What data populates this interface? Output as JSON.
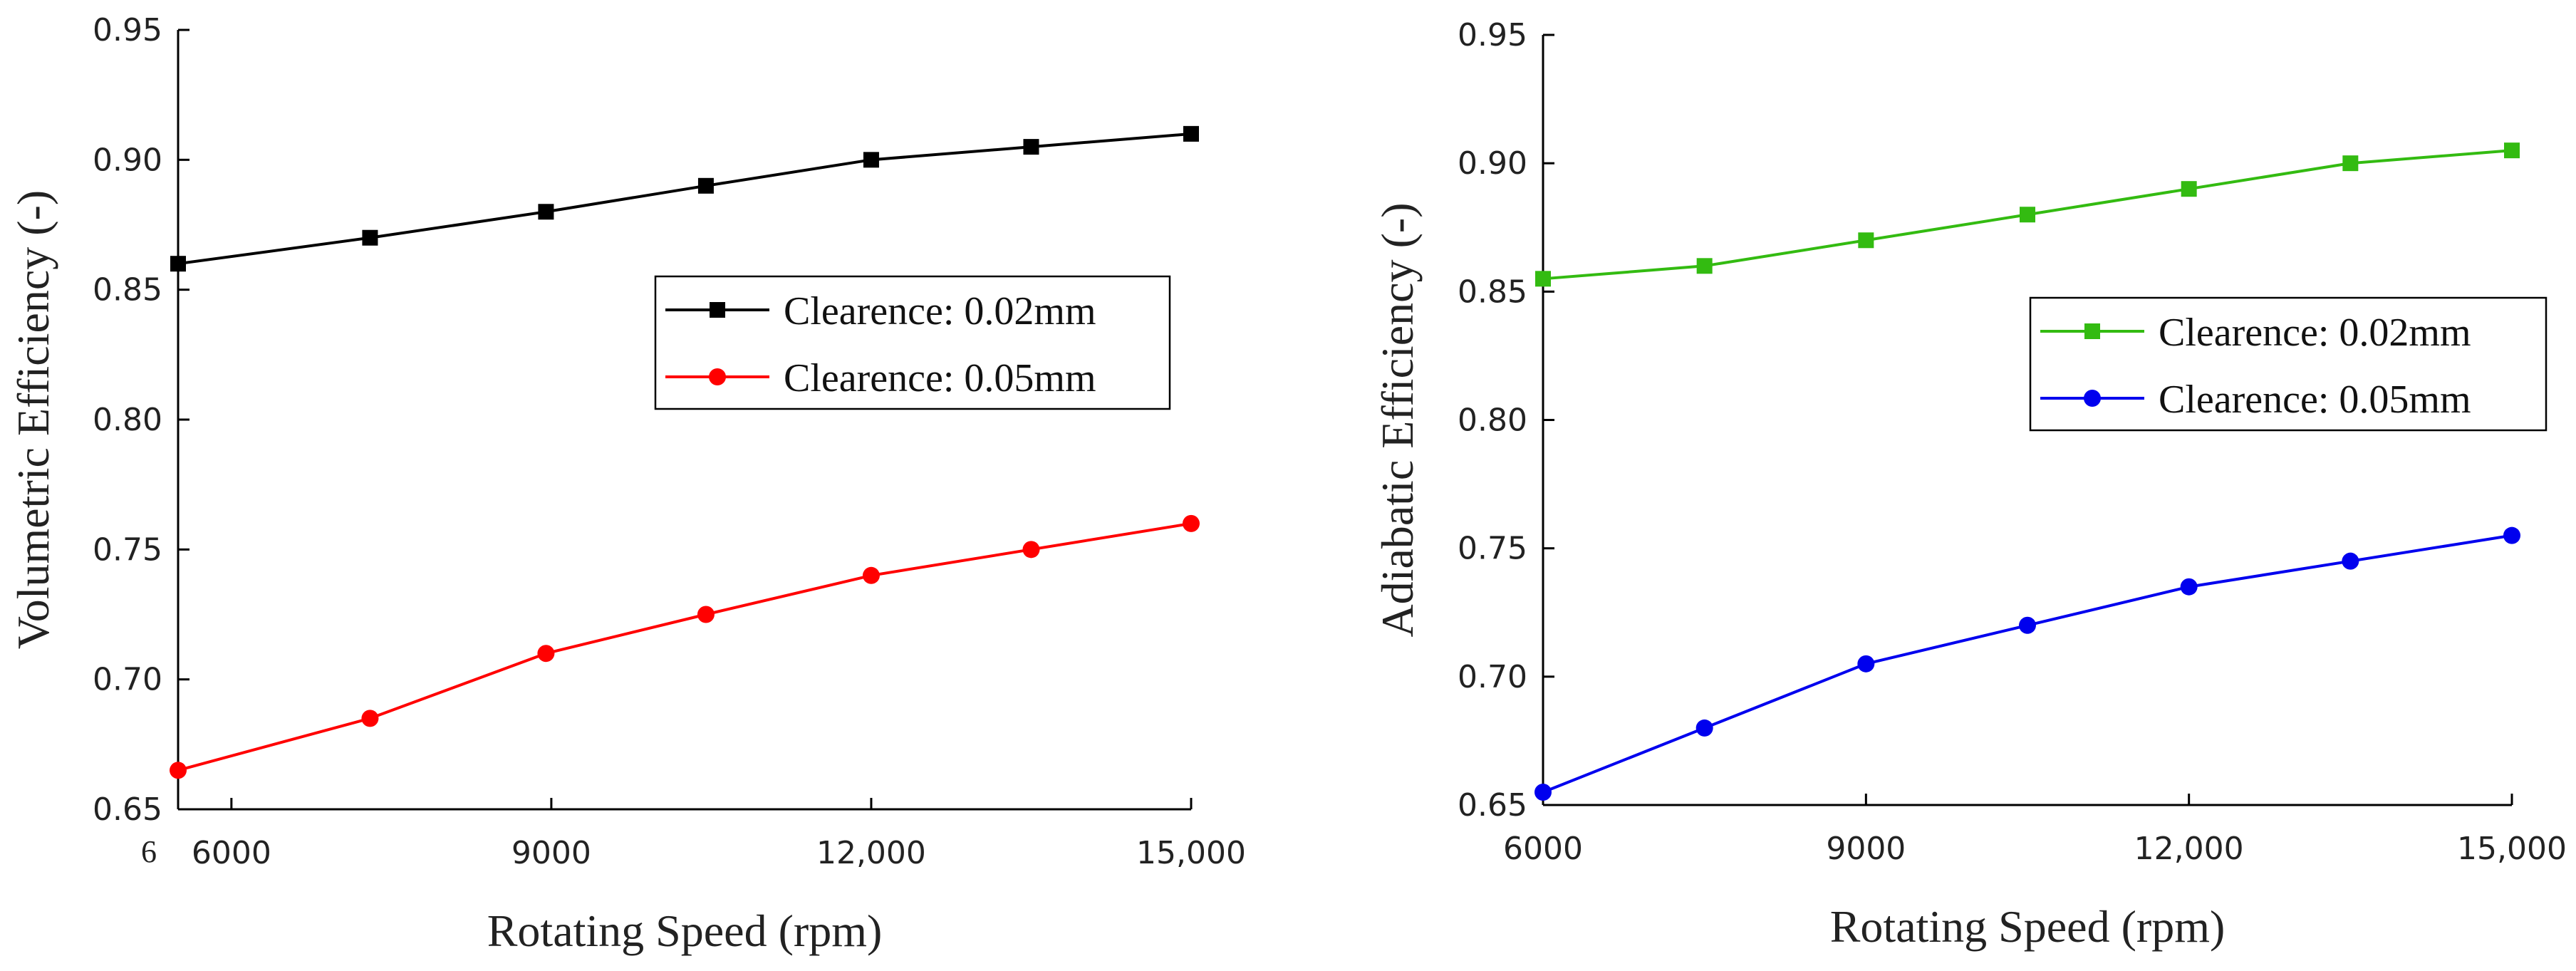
{
  "chart_data": [
    {
      "type": "line",
      "xlabel": "Rotating Speed (rpm)",
      "ylabel": "Volumetric Efficiency (-)",
      "xlim": [
        5500,
        15000
      ],
      "ylim": [
        0.65,
        0.95
      ],
      "x_ticks": [
        6000,
        9000,
        12000,
        15000
      ],
      "x_tick_labels": [
        "6000",
        "9000",
        "12,000",
        "15,000"
      ],
      "y_ticks": [
        0.65,
        0.7,
        0.75,
        0.8,
        0.85,
        0.9,
        0.95
      ],
      "y_tick_labels": [
        "0.65",
        "0.70",
        "0.75",
        "0.80",
        "0.85",
        "0.90",
        "0.95"
      ],
      "stray_label": "6",
      "legend_position": "upper-right-middle",
      "x": [
        5500,
        7300,
        8950,
        10450,
        12000,
        13500,
        15000
      ],
      "series": [
        {
          "name": "Clearence: 0.02mm",
          "color": "#000000",
          "marker": "square",
          "values": [
            0.86,
            0.87,
            0.88,
            0.89,
            0.9,
            0.905,
            0.91
          ]
        },
        {
          "name": "Clearence: 0.05mm",
          "color": "#ff0000",
          "marker": "circle",
          "values": [
            0.665,
            0.685,
            0.71,
            0.725,
            0.74,
            0.75,
            0.76
          ]
        }
      ]
    },
    {
      "type": "line",
      "xlabel": "Rotating Speed (rpm)",
      "ylabel": "Adiabatic Efficiency (-)",
      "xlim": [
        6000,
        15000
      ],
      "ylim": [
        0.65,
        0.95
      ],
      "x_ticks": [
        6000,
        9000,
        12000,
        15000
      ],
      "x_tick_labels": [
        "6000",
        "9000",
        "12,000",
        "15,000"
      ],
      "y_ticks": [
        0.65,
        0.7,
        0.75,
        0.8,
        0.85,
        0.9,
        0.95
      ],
      "y_tick_labels": [
        "0.65",
        "0.70",
        "0.75",
        "0.80",
        "0.85",
        "0.90",
        "0.95"
      ],
      "legend_position": "upper-right-middle",
      "x": [
        6000,
        7500,
        9000,
        10500,
        12000,
        13500,
        15000
      ],
      "series": [
        {
          "name": "Clearence: 0.02mm",
          "color": "#33bb11",
          "marker": "square",
          "values": [
            0.855,
            0.86,
            0.87,
            0.88,
            0.89,
            0.9,
            0.905
          ]
        },
        {
          "name": "Clearence: 0.05mm",
          "color": "#0000ee",
          "marker": "circle",
          "values": [
            0.655,
            0.68,
            0.705,
            0.72,
            0.735,
            0.745,
            0.755
          ]
        }
      ]
    }
  ]
}
